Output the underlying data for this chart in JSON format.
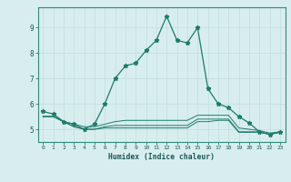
{
  "xlabel": "Humidex (Indice chaleur)",
  "x_values": [
    0,
    1,
    2,
    3,
    4,
    5,
    6,
    7,
    8,
    9,
    10,
    11,
    12,
    13,
    14,
    15,
    16,
    17,
    18,
    19,
    20,
    21,
    22,
    23
  ],
  "series": [
    [
      5.7,
      5.6,
      5.3,
      5.2,
      5.0,
      5.2,
      6.0,
      7.0,
      7.5,
      7.6,
      8.1,
      8.5,
      9.45,
      8.5,
      8.4,
      9.0,
      6.6,
      6.0,
      5.85,
      5.5,
      5.25,
      4.9,
      4.8,
      4.9
    ],
    [
      5.5,
      5.5,
      5.3,
      5.2,
      5.1,
      5.1,
      5.2,
      5.3,
      5.35,
      5.35,
      5.35,
      5.35,
      5.35,
      5.35,
      5.35,
      5.55,
      5.55,
      5.55,
      5.55,
      5.05,
      5.0,
      4.95,
      4.85,
      4.9
    ],
    [
      5.5,
      5.5,
      5.3,
      5.1,
      5.0,
      5.0,
      5.1,
      5.15,
      5.15,
      5.15,
      5.15,
      5.15,
      5.15,
      5.15,
      5.15,
      5.4,
      5.4,
      5.4,
      5.4,
      4.9,
      4.9,
      4.9,
      4.8,
      4.88
    ],
    [
      5.5,
      5.5,
      5.3,
      5.1,
      5.0,
      5.0,
      5.05,
      5.05,
      5.05,
      5.05,
      5.05,
      5.05,
      5.05,
      5.05,
      5.05,
      5.3,
      5.3,
      5.35,
      5.35,
      4.88,
      4.88,
      4.88,
      4.8,
      4.88
    ]
  ],
  "line_color": "#1e7b6a",
  "bg_color": "#d8eeee",
  "grid_major_color": "#c0dede",
  "grid_minor_color": "#d0e8e8",
  "ylim": [
    4.5,
    9.8
  ],
  "yticks": [
    5,
    6,
    7,
    8,
    9
  ],
  "xlim": [
    -0.5,
    23.5
  ],
  "figsize": [
    3.2,
    2.0
  ],
  "dpi": 100
}
